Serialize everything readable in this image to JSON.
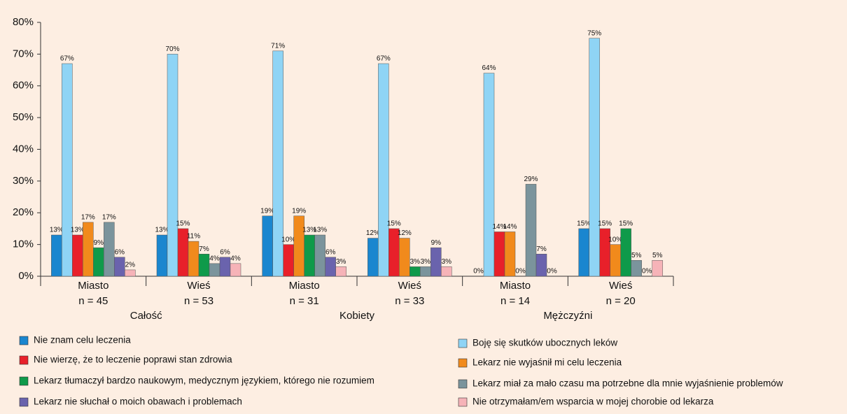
{
  "chart_data": {
    "type": "bar",
    "categories": [
      "Miasto",
      "Wieś",
      "Miasto",
      "Wieś",
      "Miasto",
      "Wieś"
    ],
    "category_sublabels": [
      "n = 45",
      "n = 53",
      "n = 31",
      "n = 33",
      "n = 14",
      "n = 20"
    ],
    "groups": [
      "Całość",
      "Kobiety",
      "Mężczyźni"
    ],
    "series": [
      {
        "name": "Nie znam celu leczenia",
        "color": "#1a86cf",
        "values": [
          13,
          13,
          19,
          12,
          0,
          15
        ],
        "value_labels": [
          "13%",
          "13%",
          "19%",
          "12%",
          "0%",
          "15%"
        ]
      },
      {
        "name": "Boję się skutków ubocznych leków",
        "color": "#8fd4f5",
        "values": [
          67,
          70,
          71,
          67,
          64,
          75
        ],
        "value_labels": [
          "67%",
          "70%",
          "71%",
          "67%",
          "64%",
          "75%"
        ]
      },
      {
        "name": "Nie wierzę, że to leczenie poprawi stan zdrowia",
        "color": "#e8202a",
        "values": [
          13,
          15,
          10,
          15,
          14,
          15
        ],
        "value_labels": [
          "13%",
          "15%",
          "10%",
          "15%",
          "14%",
          "15%"
        ]
      },
      {
        "name": "Lekarz nie wyjaśnił mi celu leczenia",
        "color": "#f18a1c",
        "values": [
          17,
          11,
          19,
          12,
          14,
          10
        ],
        "value_labels": [
          "17%",
          "11%",
          "19%",
          "12%",
          "14%",
          "10%"
        ]
      },
      {
        "name": "Lekarz tłumaczył bardzo naukowym, medycznym językiem, którego nie rozumiem",
        "color": "#0f9a4a",
        "values": [
          9,
          7,
          13,
          3,
          0,
          15
        ],
        "value_labels": [
          "9%",
          "7%",
          "13%",
          "3%",
          "0%",
          "15%"
        ]
      },
      {
        "name": "Lekarz miał za mało czasu ma potrzebne dla mnie wyjaśnienie problemów",
        "color": "#7b949c",
        "values": [
          17,
          4,
          13,
          3,
          29,
          5
        ],
        "value_labels": [
          "17%",
          "4%",
          "13%",
          "3%",
          "29%",
          "5%"
        ]
      },
      {
        "name": "Lekarz nie słuchał o moich obawach i problemach",
        "color": "#6a63ad",
        "values": [
          6,
          6,
          6,
          9,
          7,
          0
        ],
        "value_labels": [
          "6%",
          "6%",
          "6%",
          "9%",
          "7%",
          "0%"
        ]
      },
      {
        "name": "Nie otrzymałam/em wsparcia w mojej chorobie od lekarza",
        "color": "#f6b3b8",
        "values": [
          2,
          4,
          3,
          3,
          0,
          5
        ],
        "value_labels": [
          "2%",
          "4%",
          "3%",
          "3%",
          "0%",
          "5%"
        ]
      }
    ],
    "ylim": [
      0,
      80
    ],
    "yticks": [
      {
        "value": 0,
        "label": "0%"
      },
      {
        "value": 10,
        "label": "10%"
      },
      {
        "value": 20,
        "label": "20%"
      },
      {
        "value": 30,
        "label": "30%"
      },
      {
        "value": 40,
        "label": "40%"
      },
      {
        "value": 50,
        "label": "50%"
      },
      {
        "value": 60,
        "label": "60%"
      },
      {
        "value": 70,
        "label": "70%"
      },
      {
        "value": 80,
        "label": "80%"
      }
    ]
  }
}
